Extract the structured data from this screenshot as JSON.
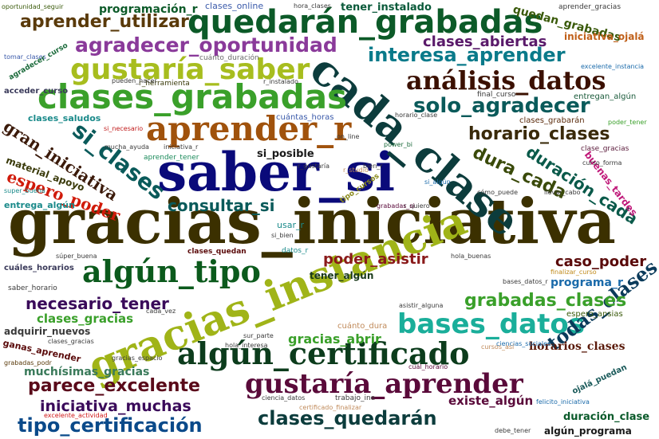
{
  "words": [
    {
      "text": "gracias_iniciativa",
      "color": "#3b3000"
    },
    {
      "text": "saber_si",
      "color": "#0a0a7a"
    },
    {
      "text": "cada_clase",
      "color": "#0c3c3c"
    },
    {
      "text": "gracias_instancia",
      "color": "#a0b418"
    },
    {
      "text": "aprender_r",
      "color": "#a0520c"
    },
    {
      "text": "quedarán_grabadas",
      "color": "#0c5a28"
    },
    {
      "text": "clases_grabadas",
      "color": "#3aa02a"
    },
    {
      "text": "gustaría_saber",
      "color": "#a7bd1e"
    },
    {
      "text": "análisis_datos",
      "color": "#3b1000"
    },
    {
      "text": "algún_tipo",
      "color": "#0b5a1c"
    },
    {
      "text": "algún_certificado",
      "color": "#0c3c1c"
    },
    {
      "text": "gustaría_aprender",
      "color": "#5a0a3a"
    },
    {
      "text": "bases_datos",
      "color": "#1aae9a"
    },
    {
      "text": "interesa_aprender",
      "color": "#0a7a8a"
    },
    {
      "text": "solo_agradecer",
      "color": "#0a5a5a"
    },
    {
      "text": "agradecer_oportunidad",
      "color": "#8a3a9a"
    },
    {
      "text": "aprender_utilizar",
      "color": "#5a3a0a"
    },
    {
      "text": "si_clases",
      "color": "#0a5a5a"
    },
    {
      "text": "gran_iniciativa",
      "color": "#3b1a0a"
    },
    {
      "text": "espero_poder",
      "color": "#d01a0a"
    },
    {
      "text": "horario_clases",
      "color": "#3a2a0a"
    },
    {
      "text": "dura_cada",
      "color": "#3a4a0a"
    },
    {
      "text": "duración_cada",
      "color": "#0a5a4a"
    },
    {
      "text": "consultar_si",
      "color": "#0a5a5a"
    },
    {
      "text": "necesario_tener",
      "color": "#3a0a5a"
    },
    {
      "text": "parece_excelente",
      "color": "#5a0a1a"
    },
    {
      "text": "tipo_certificación",
      "color": "#0a4a8a"
    },
    {
      "text": "clases_quedarán",
      "color": "#0c3c3c"
    },
    {
      "text": "todas_clases",
      "color": "#0a3a5a"
    },
    {
      "text": "iniciativa_muchas",
      "color": "#3a0a5a"
    },
    {
      "text": "grabadas_clases",
      "color": "#3aa02a"
    },
    {
      "text": "clases_abiertas",
      "color": "#5a1a6a"
    },
    {
      "text": "programación_r",
      "color": "#0c5a28"
    },
    {
      "text": "poder_asistir",
      "color": "#8a1a1a"
    },
    {
      "text": "caso_poder",
      "color": "#5a0a0a"
    },
    {
      "text": "programa_r",
      "color": "#1a6aaa"
    },
    {
      "text": "clases_gracias",
      "color": "#3aa02a"
    },
    {
      "text": "gracias_abrir",
      "color": "#3aa02a"
    },
    {
      "text": "horarios_clases",
      "color": "#5a1a0a"
    },
    {
      "text": "existe_algún",
      "color": "#5a0a3a"
    },
    {
      "text": "muchísimas_gracias",
      "color": "#3a7a5a"
    },
    {
      "text": "duración_clase",
      "color": "#0a5a2a"
    },
    {
      "text": "algún_programa",
      "color": "#1a1a1a"
    },
    {
      "text": "quedan_grabadas",
      "color": "#3a5a0a"
    },
    {
      "text": "iniciativa_ojalá",
      "color": "#c0601a"
    },
    {
      "text": "tener_instalado",
      "color": "#0a5a3a"
    },
    {
      "text": "clases_online",
      "color": "#3a5aaa"
    },
    {
      "text": "material_apoyo",
      "color": "#3a3a0a"
    },
    {
      "text": "buenas_tardes",
      "color": "#c01a7a"
    },
    {
      "text": "clases_saludos",
      "color": "#1a8a8a"
    },
    {
      "text": "clases_grabarán",
      "color": "#5a2a0a"
    },
    {
      "text": "espero_ansias",
      "color": "#3a5a0a"
    },
    {
      "text": "adquirir_nuevos",
      "color": "#3a3a3a"
    },
    {
      "text": "ganas_aprender",
      "color": "#5a0a0a"
    },
    {
      "text": "cuántas_horas",
      "color": "#3a5aaa"
    },
    {
      "text": "entregan_algún",
      "color": "#1a5a3a"
    },
    {
      "text": "entrega_algún",
      "color": "#1a8a8a"
    },
    {
      "text": "si_posible",
      "color": "#1a1a1a"
    },
    {
      "text": "tener_algún",
      "color": "#1a3a1a"
    },
    {
      "text": "usar_r",
      "color": "#1a8a8a"
    },
    {
      "text": "cuánto_dura",
      "color": "#c08a5a"
    },
    {
      "text": "final_curso",
      "color": "#3a3a3a"
    },
    {
      "text": "clase_gracias",
      "color": "#5a1a3a"
    },
    {
      "text": "r_herramienta",
      "color": "#3a3a0a"
    },
    {
      "text": "cuánto_duración",
      "color": "#6a6a6a"
    },
    {
      "text": "oportunidad_seguir",
      "color": "#3a5a0a"
    },
    {
      "text": "hora_clases",
      "color": "#3a3a3a"
    },
    {
      "text": "aprender_gracias",
      "color": "#3a3a3a"
    },
    {
      "text": "tomar_clases",
      "color": "#3a5aaa"
    },
    {
      "text": "agradecer_curso",
      "color": "#1a6a3a"
    },
    {
      "text": "acceder_curso",
      "color": "#3a3a5a"
    },
    {
      "text": "excelente_instancia",
      "color": "#1a6aaa"
    },
    {
      "text": "poder_tener",
      "color": "#3aa02a"
    },
    {
      "text": "aprender_tener",
      "color": "#1a8a5a"
    },
    {
      "text": "cuáles_horarios",
      "color": "#3a3a5a"
    },
    {
      "text": "saber_horario",
      "color": "#3a3a3a"
    },
    {
      "text": "súper_buena",
      "color": "#3a3a3a"
    },
    {
      "text": "datos_r",
      "color": "#1a8a8a"
    },
    {
      "text": "hola_buenas",
      "color": "#3a3a3a"
    },
    {
      "text": "finalizar_curso",
      "color": "#c08a1a"
    },
    {
      "text": "ciencias_sociales",
      "color": "#1a6aaa"
    },
    {
      "text": "cuál_horario",
      "color": "#5a0a3a"
    },
    {
      "text": "excelente_actividad",
      "color": "#d01a1a"
    },
    {
      "text": "certificado_finalizar",
      "color": "#c08a5a"
    },
    {
      "text": "grabadas_podr",
      "color": "#5a3a0a"
    },
    {
      "text": "felicito_iniciativa",
      "color": "#1a6aaa"
    },
    {
      "text": "ojalá_puedan",
      "color": "#1a5a5a"
    },
    {
      "text": "llevar_cabo",
      "color": "#3a3a3a"
    },
    {
      "text": "cómo_puede",
      "color": "#3a3a3a"
    },
    {
      "text": "mucha_ayuda",
      "color": "#3a3a3a"
    },
    {
      "text": "power_bi",
      "color": "#1a6a3a"
    },
    {
      "text": "on_line",
      "color": "#3a3a3a"
    },
    {
      "text": "super_buena",
      "color": "#1a8a8a"
    },
    {
      "text": "tipo_cursos",
      "color": "#8a8a1a"
    },
    {
      "text": "r_studio",
      "color": "#c08a5a"
    },
    {
      "text": "bien_r",
      "color": "#3a3a3a"
    },
    {
      "text": "si_algún",
      "color": "#1a6aaa"
    },
    {
      "text": "r_quiero",
      "color": "#3a3a3a"
    },
    {
      "text": "grabadas_si",
      "color": "#5a0a3a"
    },
    {
      "text": "si_bien",
      "color": "#3a3a3a"
    },
    {
      "text": "r_gustaría",
      "color": "#3a3a3a"
    },
    {
      "text": "iniciativa_r",
      "color": "#3a3a3a"
    },
    {
      "text": "si_necesario",
      "color": "#c01a1a"
    },
    {
      "text": "asistir_alguna",
      "color": "#3a3a3a"
    },
    {
      "text": "cursos_así",
      "color": "#c08a5a"
    },
    {
      "text": "debe_tener",
      "color": "#3a3a3a"
    },
    {
      "text": "trabajo_ine",
      "color": "#3a3a3a"
    },
    {
      "text": "ciencia_datos",
      "color": "#3a3a3a"
    },
    {
      "text": "cada_vez",
      "color": "#3a3a3a"
    },
    {
      "text": "sur_parte",
      "color": "#3a3a3a"
    },
    {
      "text": "clases_quedan",
      "color": "#5a0a0a"
    },
    {
      "text": "r_instalado",
      "color": "#3a3a3a"
    },
    {
      "text": "horario_clase",
      "color": "#3a3a3a"
    },
    {
      "text": "curso_forma",
      "color": "#3a3a3a"
    },
    {
      "text": "gracias_espacio",
      "color": "#3a3a3a"
    },
    {
      "text": "hola_interesa",
      "color": "#3a3a3a"
    },
    {
      "text": "clases_gracias",
      "color": "#3a3a3a"
    },
    {
      "text": "pueden_hacer",
      "color": "#3a3a3a"
    },
    {
      "text": "bases_datos_r",
      "color": "#3a3a3a"
    }
  ]
}
